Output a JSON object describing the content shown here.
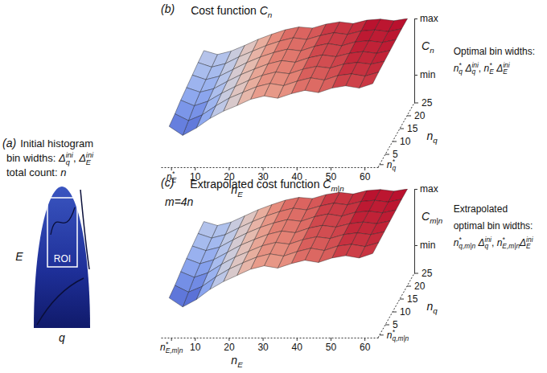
{
  "panel_a": {
    "panel_label": "(a)",
    "lines": [
      [
        "Initial histogram"
      ],
      [
        "bin widths: ",
        {
          "base": "Δ",
          "sub": "q",
          "sup": "ini"
        },
        ", ",
        {
          "base": "Δ",
          "sub": "E",
          "sup": "ini"
        }
      ],
      [
        "total count: ",
        {
          "base": "n"
        }
      ]
    ],
    "x_label": [
      {
        "base": "q"
      }
    ],
    "y_label": [
      {
        "base": "E"
      }
    ],
    "roi_label": "ROI"
  },
  "chart_data": [
    {
      "type": "surface",
      "panel_label": "(b)",
      "title": [
        "Cost function ",
        {
          "base": "C",
          "sub": "n"
        }
      ],
      "x_label": [
        {
          "base": "n",
          "sub": "E"
        }
      ],
      "y_label": [
        {
          "base": "n",
          "sub": "q"
        }
      ],
      "z_label": [
        {
          "base": "C",
          "sub": "n"
        }
      ],
      "x": [
        2,
        6,
        10,
        14,
        18,
        22,
        26,
        30,
        34,
        38,
        42,
        46,
        50,
        54,
        58,
        62
      ],
      "y": [
        1,
        5,
        9,
        13,
        17,
        21,
        25
      ],
      "z": [
        [
          0.18,
          0.02,
          0.15,
          0.32,
          0.45,
          0.55,
          0.66,
          0.72,
          0.68,
          0.76,
          0.82,
          0.78,
          0.86,
          0.9,
          0.86,
          0.94
        ],
        [
          0.22,
          0.1,
          0.2,
          0.36,
          0.5,
          0.6,
          0.7,
          0.76,
          0.72,
          0.8,
          0.86,
          0.82,
          0.9,
          0.93,
          0.89,
          0.96
        ],
        [
          0.28,
          0.18,
          0.26,
          0.4,
          0.52,
          0.63,
          0.72,
          0.78,
          0.75,
          0.83,
          0.88,
          0.85,
          0.92,
          0.95,
          0.92,
          0.97
        ],
        [
          0.32,
          0.24,
          0.3,
          0.43,
          0.55,
          0.65,
          0.74,
          0.8,
          0.77,
          0.85,
          0.9,
          0.87,
          0.93,
          0.96,
          0.93,
          0.98
        ],
        [
          0.36,
          0.28,
          0.34,
          0.46,
          0.58,
          0.68,
          0.76,
          0.82,
          0.79,
          0.87,
          0.92,
          0.88,
          0.95,
          0.97,
          0.94,
          0.99
        ],
        [
          0.4,
          0.32,
          0.38,
          0.5,
          0.6,
          0.7,
          0.78,
          0.84,
          0.81,
          0.88,
          0.93,
          0.9,
          0.96,
          0.98,
          0.95,
          1.0
        ],
        [
          0.43,
          0.36,
          0.42,
          0.52,
          0.63,
          0.72,
          0.8,
          0.85,
          0.83,
          0.9,
          0.94,
          0.91,
          0.97,
          0.99,
          0.96,
          1.0
        ]
      ],
      "xlim": [
        0,
        64
      ],
      "ylim": [
        0,
        25
      ],
      "zlim": [
        -0.5,
        1
      ],
      "xticks": [
        {
          "value": 3,
          "label": [
            {
              "base": "n",
              "sub": "E",
              "sup": "*"
            }
          ]
        },
        10,
        20,
        30,
        40,
        50,
        60
      ],
      "yticks": [
        {
          "value": 1,
          "label": [
            {
              "base": "n",
              "sub": "q",
              "sup": "*"
            }
          ]
        },
        5,
        10,
        15,
        20,
        25
      ],
      "zticks": [
        {
          "value": 0,
          "label": "min"
        },
        {
          "value": 1,
          "label": "max"
        }
      ],
      "annotation": [
        [
          "Optimal bin widths:"
        ],
        [
          {
            "base": "n",
            "sub": "q",
            "sup": "*"
          },
          " ",
          {
            "base": "Δ",
            "sub": "q",
            "sup": "ini"
          },
          ", ",
          {
            "base": "n",
            "sub": "E",
            "sup": "*"
          },
          " ",
          {
            "base": "Δ",
            "sub": "E",
            "sup": "ini"
          }
        ]
      ]
    },
    {
      "type": "surface",
      "panel_label": "(c)",
      "title": [
        "Extrapolated cost function ",
        {
          "base": "C",
          "sub": "m|n"
        }
      ],
      "subtitle": [
        {
          "base": "m=4n"
        }
      ],
      "x_label": [
        {
          "base": "n",
          "sub": "E"
        }
      ],
      "y_label": [
        {
          "base": "n",
          "sub": "q"
        }
      ],
      "z_label": [
        {
          "base": "C",
          "sub": "m|n"
        }
      ],
      "x": [
        2,
        6,
        10,
        14,
        18,
        22,
        26,
        30,
        34,
        38,
        42,
        46,
        50,
        54,
        58,
        62
      ],
      "y": [
        1,
        5,
        9,
        13,
        17,
        21,
        25
      ],
      "z": [
        [
          0.16,
          0.0,
          0.13,
          0.31,
          0.45,
          0.56,
          0.67,
          0.73,
          0.69,
          0.77,
          0.83,
          0.79,
          0.87,
          0.91,
          0.87,
          0.95
        ],
        [
          0.2,
          0.08,
          0.18,
          0.35,
          0.49,
          0.6,
          0.7,
          0.76,
          0.72,
          0.8,
          0.86,
          0.82,
          0.9,
          0.93,
          0.89,
          0.96
        ],
        [
          0.26,
          0.16,
          0.24,
          0.39,
          0.52,
          0.62,
          0.72,
          0.78,
          0.75,
          0.83,
          0.88,
          0.85,
          0.92,
          0.95,
          0.92,
          0.97
        ],
        [
          0.31,
          0.22,
          0.29,
          0.42,
          0.55,
          0.65,
          0.74,
          0.8,
          0.77,
          0.85,
          0.9,
          0.87,
          0.93,
          0.96,
          0.93,
          0.98
        ],
        [
          0.35,
          0.27,
          0.33,
          0.46,
          0.58,
          0.68,
          0.76,
          0.82,
          0.79,
          0.87,
          0.92,
          0.88,
          0.95,
          0.97,
          0.94,
          0.99
        ],
        [
          0.39,
          0.31,
          0.37,
          0.49,
          0.6,
          0.7,
          0.78,
          0.84,
          0.81,
          0.88,
          0.93,
          0.9,
          0.96,
          0.98,
          0.95,
          1.0
        ],
        [
          0.42,
          0.35,
          0.41,
          0.52,
          0.63,
          0.72,
          0.8,
          0.85,
          0.83,
          0.9,
          0.94,
          0.91,
          0.97,
          0.99,
          0.96,
          1.0
        ]
      ],
      "xlim": [
        0,
        64
      ],
      "ylim": [
        0,
        25
      ],
      "zlim": [
        -0.5,
        1
      ],
      "xticks": [
        {
          "value": 3,
          "label": [
            {
              "base": "n",
              "sub": "E,m|n",
              "sup": "*"
            }
          ]
        },
        10,
        20,
        30,
        40,
        50,
        60
      ],
      "yticks": [
        {
          "value": 1,
          "label": [
            {
              "base": "n",
              "sub": "q,m|n",
              "sup": "*"
            }
          ]
        },
        5,
        10,
        15,
        20,
        25
      ],
      "zticks": [
        {
          "value": 0,
          "label": "min"
        },
        {
          "value": 1,
          "label": "max"
        }
      ],
      "annotation": [
        [
          "Extrapolated"
        ],
        [
          "optimal bin widths:"
        ],
        [
          {
            "base": "n",
            "sub": "q,m|n",
            "sup": "*"
          },
          " ",
          {
            "base": "Δ",
            "sub": "q",
            "sup": "ini"
          },
          ", ",
          {
            "base": "n",
            "sub": "E,m|n",
            "sup": "*"
          },
          {
            "base": "Δ",
            "sub": "E",
            "sup": "ini"
          }
        ]
      ]
    }
  ]
}
